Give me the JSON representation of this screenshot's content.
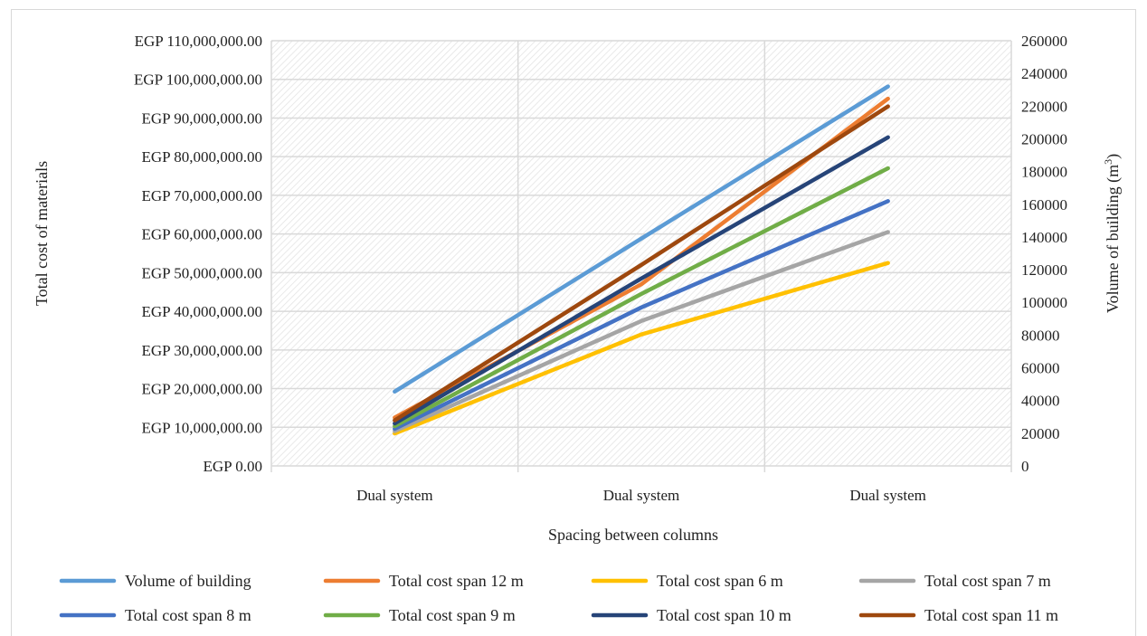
{
  "chart_data": {
    "type": "line",
    "xlabel": "Spacing between columns",
    "ylabel_left": "Total cost of materials",
    "ylabel_right_main": "Volume of building (m",
    "ylabel_right_sup": "3",
    "ylabel_right_tail": ")",
    "categories": [
      "Dual system",
      "Dual system",
      "Dual system"
    ],
    "ylim_left": [
      0,
      110000000
    ],
    "ylim_right": [
      0,
      260000
    ],
    "left_ticks": [
      "EGP 0.00",
      "EGP 10,000,000.00",
      "EGP 20,000,000.00",
      "EGP 30,000,000.00",
      "EGP 40,000,000.00",
      "EGP 50,000,000.00",
      "EGP 60,000,000.00",
      "EGP 70,000,000.00",
      "EGP 80,000,000.00",
      "EGP 90,000,000.00",
      "EGP 100,000,000.00",
      "EGP 110,000,000.00"
    ],
    "right_ticks": [
      "0",
      "20000",
      "40000",
      "60000",
      "80000",
      "100000",
      "120000",
      "140000",
      "160000",
      "180000",
      "200000",
      "220000",
      "240000",
      "260000"
    ],
    "grid": true,
    "legend_position": "bottom",
    "series": [
      {
        "name": "Volume of building",
        "axis": "right",
        "color": "#5b9bd5",
        "values": [
          45500,
          139000,
          232000
        ]
      },
      {
        "name": "Total cost span 12 m",
        "axis": "left",
        "color": "#ed7d31",
        "values": [
          12500000,
          47000000,
          95000000
        ]
      },
      {
        "name": "Total cost span 6 m",
        "axis": "left",
        "color": "#ffc000",
        "values": [
          8400000,
          34000000,
          52500000
        ]
      },
      {
        "name": "Total cost span 7 m",
        "axis": "left",
        "color": "#a5a5a5",
        "values": [
          9000000,
          37500000,
          60500000
        ]
      },
      {
        "name": "Total cost span 8 m",
        "axis": "left",
        "color": "#4472c4",
        "values": [
          9600000,
          41000000,
          68500000
        ]
      },
      {
        "name": "Total cost span 9 m",
        "axis": "left",
        "color": "#70ad47",
        "values": [
          10300000,
          44500000,
          77000000
        ]
      },
      {
        "name": "Total cost span 10 m",
        "axis": "left",
        "color": "#264478",
        "values": [
          11000000,
          48500000,
          85000000
        ]
      },
      {
        "name": "Total cost span 11 m",
        "axis": "left",
        "color": "#9e480e",
        "values": [
          11800000,
          52000000,
          93000000
        ]
      }
    ]
  }
}
